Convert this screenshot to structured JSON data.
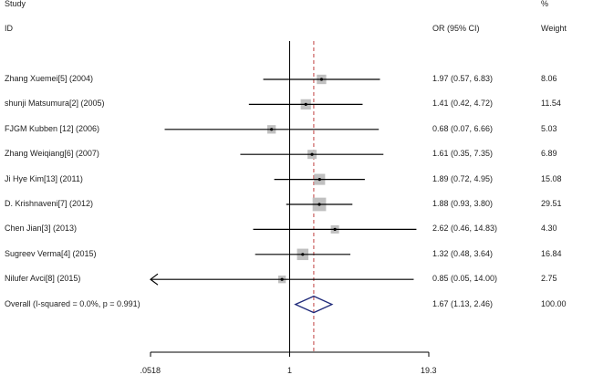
{
  "header": {
    "study_top": "Study",
    "study_id": "ID",
    "or_col": "OR (95% CI)",
    "pct": "%",
    "weight": "Weight"
  },
  "colors": {
    "line": "#000000",
    "box": "#c0c0c0",
    "ref_line": "#c04040",
    "diamond": "#1f2a7a"
  },
  "chart_data": {
    "type": "forest",
    "x_scale": "log",
    "xlim": [
      0.0518,
      19.3
    ],
    "xticks": [
      {
        "value": 0.0518,
        "label": ".0518"
      },
      {
        "value": 1,
        "label": "1"
      },
      {
        "value": 19.3,
        "label": "19.3"
      }
    ],
    "null_line": 1,
    "pooled_line": 1.67,
    "studies": [
      {
        "id": "Zhang Xuemei[5] (2004)",
        "or": 1.97,
        "low": 0.57,
        "high": 6.83,
        "ci_text": "1.97 (0.57, 6.83)",
        "weight": 8.06,
        "weight_text": "8.06"
      },
      {
        "id": "shunji Matsumura[2] (2005)",
        "or": 1.41,
        "low": 0.42,
        "high": 4.72,
        "ci_text": "1.41 (0.42, 4.72)",
        "weight": 11.54,
        "weight_text": "11.54"
      },
      {
        "id": "FJGM Kubben [12] (2006)",
        "or": 0.68,
        "low": 0.07,
        "high": 6.66,
        "ci_text": "0.68 (0.07, 6.66)",
        "weight": 5.03,
        "weight_text": "5.03"
      },
      {
        "id": "Zhang Weiqiang[6] (2007)",
        "or": 1.61,
        "low": 0.35,
        "high": 7.35,
        "ci_text": "1.61 (0.35, 7.35)",
        "weight": 6.89,
        "weight_text": "6.89"
      },
      {
        "id": "Ji Hye Kim[13] (2011)",
        "or": 1.89,
        "low": 0.72,
        "high": 4.95,
        "ci_text": "1.89 (0.72, 4.95)",
        "weight": 15.08,
        "weight_text": "15.08"
      },
      {
        "id": "D. Krishnaveni[7] (2012)",
        "or": 1.88,
        "low": 0.93,
        "high": 3.8,
        "ci_text": "1.88 (0.93, 3.80)",
        "weight": 29.51,
        "weight_text": "29.51"
      },
      {
        "id": "Chen Jian[3] (2013)",
        "or": 2.62,
        "low": 0.46,
        "high": 14.83,
        "ci_text": "2.62 (0.46, 14.83)",
        "weight": 4.3,
        "weight_text": "4.30"
      },
      {
        "id": "Sugreev Verma[4] (2015)",
        "or": 1.32,
        "low": 0.48,
        "high": 3.64,
        "ci_text": "1.32 (0.48, 3.64)",
        "weight": 16.84,
        "weight_text": "16.84"
      },
      {
        "id": "Nilufer Avci[8] (2015)",
        "or": 0.85,
        "low": 0.05,
        "high": 14.0,
        "ci_text": "0.85 (0.05, 14.00)",
        "weight": 2.75,
        "weight_text": "2.75"
      }
    ],
    "overall": {
      "id": "Overall  (I-squared = 0.0%, p = 0.991)",
      "or": 1.67,
      "low": 1.13,
      "high": 2.46,
      "ci_text": "1.67 (1.13, 2.46)",
      "weight": 100.0,
      "weight_text": "100.00"
    }
  }
}
